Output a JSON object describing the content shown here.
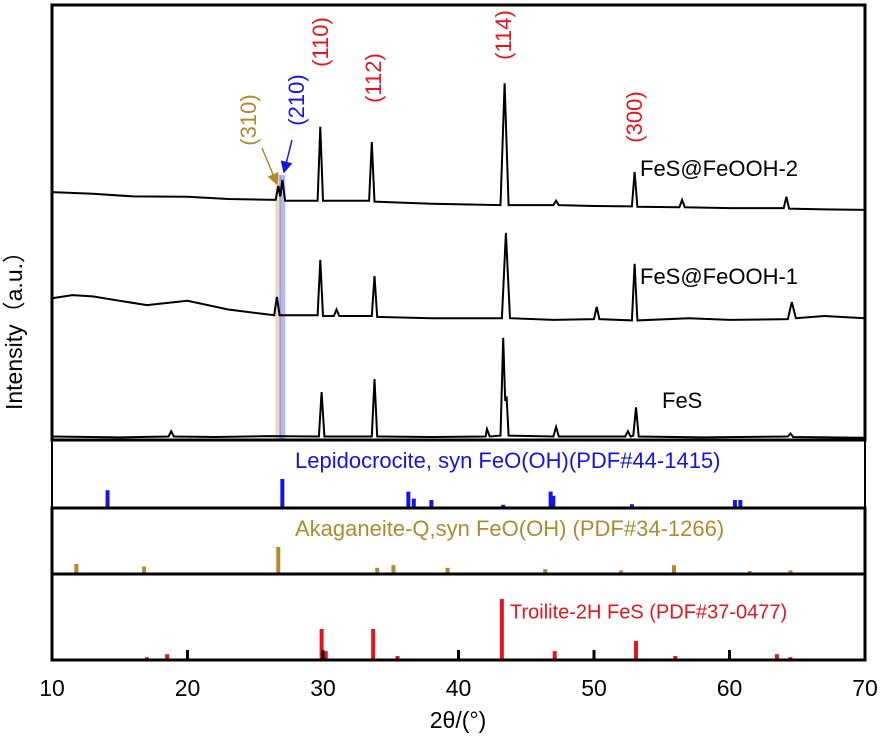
{
  "chart_data": [
    {
      "type": "line",
      "ylabel": "Intensity（a.u.）",
      "xlim": [
        10,
        70
      ],
      "ylim": [
        0,
        100
      ],
      "series": [
        {
          "name": "FeS@FeOOH-2",
          "color": "#000000",
          "x": [
            10,
            13,
            16,
            20,
            23,
            26.5,
            26.7,
            26.85,
            27.0,
            27.2,
            29.6,
            29.8,
            30,
            33.4,
            33.6,
            33.8,
            38,
            43.1,
            43.4,
            43.7,
            47,
            47.2,
            47.4,
            50,
            52.8,
            53,
            53.2,
            56.3,
            56.5,
            56.7,
            60,
            64,
            64.2,
            64.4,
            67,
            70
          ],
          "values": [
            57,
            56.6,
            56,
            55.9,
            55.4,
            55.2,
            58.4,
            56,
            59.8,
            55,
            55,
            72,
            55,
            55,
            68.5,
            54.8,
            54.3,
            54,
            82,
            54,
            54,
            55,
            54,
            53.8,
            53.7,
            61.6,
            53.6,
            53.5,
            55.2,
            53.5,
            53.3,
            53.3,
            55.9,
            53.2,
            53,
            52.9
          ]
        },
        {
          "name": "FeS@FeOOH-1",
          "color": "#000000",
          "x": [
            10,
            11.5,
            13,
            15,
            17,
            20,
            23,
            26.4,
            26.6,
            26.8,
            29.6,
            29.8,
            30,
            30.8,
            31,
            31.2,
            33.6,
            33.8,
            34,
            38,
            43.2,
            43.5,
            43.8,
            47,
            50,
            50.2,
            50.4,
            52.8,
            53,
            53.2,
            57,
            60,
            64.3,
            64.6,
            64.9,
            67,
            70
          ],
          "values": [
            32.6,
            33.3,
            33,
            32,
            31,
            32,
            30,
            28.7,
            32.9,
            28.7,
            28.7,
            41.4,
            28.5,
            28.5,
            30,
            28.5,
            28.5,
            37.7,
            28.3,
            28,
            28,
            47.6,
            28,
            27.6,
            27.8,
            30.6,
            27.8,
            27.5,
            40.5,
            27.5,
            28,
            27.6,
            27.8,
            31.7,
            28,
            28.5,
            28
          ]
        },
        {
          "name": "FeS",
          "color": "#000000",
          "x": [
            10,
            15,
            18.6,
            18.8,
            19,
            22,
            26,
            29.7,
            29.9,
            30.1,
            33.6,
            33.8,
            34,
            38,
            42,
            42.1,
            42.3,
            43.1,
            43.3,
            43.45,
            43.55,
            43.7,
            47,
            47.2,
            47.4,
            52.3,
            52.5,
            52.7,
            52.9,
            53.1,
            53.3,
            58,
            64.3,
            64.5,
            64.7,
            70
          ],
          "values": [
            0.8,
            0.6,
            0.8,
            2,
            0.8,
            0.7,
            0.9,
            0.8,
            11,
            0.8,
            0.8,
            14,
            0.8,
            0.7,
            0.8,
            2.5,
            0.8,
            1,
            23.5,
            9,
            10,
            1,
            0.8,
            3,
            0.8,
            0.8,
            2,
            0.8,
            1,
            7.5,
            0.8,
            0.6,
            0.8,
            1.5,
            0.7,
            0.5
          ]
        }
      ],
      "annotations": [
        {
          "text": "(310)",
          "x": 26.7,
          "color": "#b08a2e"
        },
        {
          "text": "(210)",
          "x": 27.0,
          "color": "#1414e6"
        },
        {
          "text": "(110)",
          "x": 29.8,
          "color": "#e8141c"
        },
        {
          "text": "(112)",
          "x": 33.6,
          "color": "#e8141c"
        },
        {
          "text": "(114)",
          "x": 43.4,
          "color": "#e8141c"
        },
        {
          "text": "(300)",
          "x": 53.0,
          "color": "#e8141c"
        }
      ]
    },
    {
      "type": "stick",
      "label": "Lepidocrocite, syn FeO(OH)(PDF#44-1415)",
      "color": "#1414e6",
      "xlim": [
        10,
        70
      ],
      "ylim": [
        0,
        100
      ],
      "x": [
        14.1,
        27.0,
        36.3,
        36.7,
        38.0,
        43.3,
        46.8,
        47.0,
        52.8,
        60.4,
        60.8
      ],
      "values": [
        60,
        100,
        55,
        30,
        25,
        8,
        55,
        40,
        10,
        25,
        25
      ]
    },
    {
      "type": "stick",
      "label": "Akaganeite-Q,syn FeO(OH) (PDF#34-1266)",
      "color": "#b08a2e",
      "xlim": [
        10,
        70
      ],
      "ylim": [
        0,
        100
      ],
      "x": [
        11.8,
        16.8,
        26.7,
        34.0,
        35.2,
        39.2,
        46.4,
        52.0,
        55.9,
        61.5,
        64.5
      ],
      "values": [
        35,
        25,
        100,
        20,
        30,
        20,
        15,
        10,
        30,
        8,
        10
      ]
    },
    {
      "type": "stick",
      "label": "Troilite-2H FeS (PDF#37-0477)",
      "color": "#e8141c",
      "xlim": [
        10,
        70
      ],
      "ylim": [
        0,
        100
      ],
      "x": [
        17.0,
        18.5,
        29.9,
        30.2,
        33.7,
        35.5,
        43.2,
        47.1,
        53.1,
        56.0,
        63.5,
        64.5
      ],
      "values": [
        3,
        8,
        50,
        13,
        50,
        5,
        100,
        13,
        30,
        5,
        8,
        3
      ],
      "xticks": [
        10,
        20,
        30,
        40,
        50,
        60,
        70
      ],
      "xlabel": "2θ/(°)"
    }
  ]
}
